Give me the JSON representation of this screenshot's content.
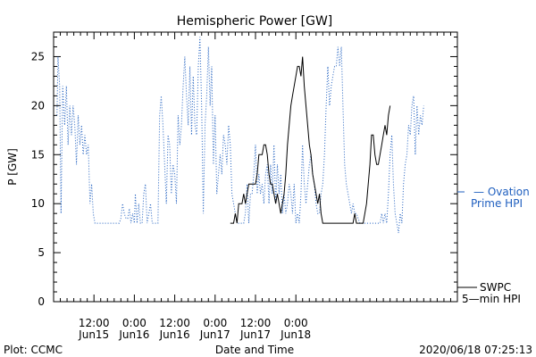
{
  "chart_data": {
    "type": "line",
    "title": "Hemispheric Power [GW]",
    "ylabel": "P [GW]",
    "xlabel": "Date and Time",
    "ylim": [
      0,
      27.5
    ],
    "xlim_hours": [
      0,
      120
    ],
    "x_ticks": [
      {
        "hour": 12,
        "time": "12:00",
        "date": "Jun15"
      },
      {
        "hour": 24,
        "time": "0:00",
        "date": "Jun16"
      },
      {
        "hour": 36,
        "time": "12:00",
        "date": "Jun16"
      },
      {
        "hour": 48,
        "time": "0:00",
        "date": "Jun17"
      },
      {
        "hour": 60,
        "time": "12:00",
        "date": "Jun17"
      },
      {
        "hour": 72,
        "time": "0:00",
        "date": "Jun18"
      }
    ],
    "y_ticks": [
      0,
      5,
      10,
      15,
      20,
      25
    ],
    "grid": false,
    "series": [
      {
        "name": "Ovation Prime HPI",
        "legend_line1": "— Ovation",
        "legend_line2": "Prime HPI",
        "color": "#1f5fbf",
        "style": "dotted",
        "points": [
          [
            1,
            19
          ],
          [
            1.3,
            25
          ],
          [
            1.8,
            22
          ],
          [
            2.2,
            9
          ],
          [
            2.7,
            22
          ],
          [
            3.3,
            18
          ],
          [
            3.8,
            22
          ],
          [
            4.3,
            16
          ],
          [
            4.8,
            20
          ],
          [
            5.3,
            17
          ],
          [
            5.8,
            20
          ],
          [
            6.3,
            18
          ],
          [
            6.8,
            14
          ],
          [
            7.3,
            19
          ],
          [
            7.8,
            16
          ],
          [
            8.3,
            18
          ],
          [
            8.8,
            15
          ],
          [
            9.3,
            17
          ],
          [
            9.8,
            15
          ],
          [
            10.3,
            16
          ],
          [
            10.8,
            10
          ],
          [
            11.3,
            12
          ],
          [
            11.8,
            9
          ],
          [
            12.3,
            8
          ],
          [
            14,
            8
          ],
          [
            16,
            8
          ],
          [
            18,
            8
          ],
          [
            19.5,
            8
          ],
          [
            20,
            8.5
          ],
          [
            20.5,
            10
          ],
          [
            21,
            9
          ],
          [
            21.5,
            8.5
          ],
          [
            22,
            8.5
          ],
          [
            22.5,
            9.5
          ],
          [
            23,
            8
          ],
          [
            23.5,
            9
          ],
          [
            24,
            8
          ],
          [
            24.3,
            11
          ],
          [
            24.8,
            8
          ],
          [
            25.3,
            10
          ],
          [
            25.8,
            8
          ],
          [
            26.3,
            8
          ],
          [
            26.8,
            11
          ],
          [
            27.3,
            12
          ],
          [
            27.8,
            8
          ],
          [
            28.3,
            9
          ],
          [
            28.8,
            10
          ],
          [
            29.3,
            8
          ],
          [
            30.3,
            8
          ],
          [
            31,
            8
          ],
          [
            31.5,
            19
          ],
          [
            32,
            21
          ],
          [
            32.5,
            18
          ],
          [
            33,
            14
          ],
          [
            33.5,
            10
          ],
          [
            34,
            17
          ],
          [
            34.5,
            16
          ],
          [
            35,
            11
          ],
          [
            35.5,
            14
          ],
          [
            36,
            13
          ],
          [
            36.5,
            10
          ],
          [
            37,
            19
          ],
          [
            37.5,
            16
          ],
          [
            38,
            18
          ],
          [
            38.5,
            22
          ],
          [
            39,
            25
          ],
          [
            39.5,
            21
          ],
          [
            40,
            18
          ],
          [
            40.5,
            24
          ],
          [
            41,
            17
          ],
          [
            41.5,
            23
          ],
          [
            42,
            18
          ],
          [
            42.5,
            17
          ],
          [
            43,
            24
          ],
          [
            43.5,
            27
          ],
          [
            44,
            20
          ],
          [
            44.5,
            9
          ],
          [
            45,
            18
          ],
          [
            45.5,
            21
          ],
          [
            46,
            26
          ],
          [
            46.5,
            20
          ],
          [
            47,
            24
          ],
          [
            47.5,
            14
          ],
          [
            48,
            19
          ],
          [
            48.5,
            11
          ],
          [
            49,
            13
          ],
          [
            49.5,
            15
          ],
          [
            50,
            13
          ],
          [
            50.5,
            17
          ],
          [
            51,
            16
          ],
          [
            51.5,
            14
          ],
          [
            52,
            18
          ],
          [
            52.5,
            16
          ],
          [
            53,
            11
          ],
          [
            53.5,
            10
          ],
          [
            54,
            9
          ],
          [
            54.5,
            8
          ],
          [
            55,
            8
          ],
          [
            56,
            8
          ],
          [
            56.5,
            8
          ],
          [
            57,
            9
          ],
          [
            57.5,
            12
          ],
          [
            58,
            8
          ],
          [
            58.5,
            11
          ],
          [
            59,
            11
          ],
          [
            59.5,
            13
          ],
          [
            60,
            16
          ],
          [
            60.5,
            11
          ],
          [
            61,
            13
          ],
          [
            61.5,
            11
          ],
          [
            62,
            12
          ],
          [
            62.5,
            10
          ],
          [
            63,
            13
          ],
          [
            63.5,
            14
          ],
          [
            64,
            10
          ],
          [
            64.5,
            14
          ],
          [
            65,
            11
          ],
          [
            65.5,
            16
          ],
          [
            66,
            10
          ],
          [
            66.5,
            14
          ],
          [
            67,
            11
          ],
          [
            67.5,
            13
          ],
          [
            68,
            9
          ],
          [
            68.5,
            11
          ],
          [
            69,
            9
          ],
          [
            69.5,
            10
          ],
          [
            70,
            12
          ],
          [
            70.5,
            11
          ],
          [
            71,
            9
          ],
          [
            71.5,
            12
          ],
          [
            72,
            8
          ],
          [
            72.5,
            9
          ],
          [
            73,
            8
          ],
          [
            73.5,
            11
          ],
          [
            74,
            16
          ],
          [
            74.5,
            12
          ],
          [
            75,
            10
          ],
          [
            75.5,
            12
          ],
          [
            76,
            14
          ],
          [
            76.5,
            15
          ],
          [
            77,
            13
          ],
          [
            77.5,
            12
          ],
          [
            78,
            10
          ],
          [
            78.5,
            9
          ],
          [
            79,
            9
          ],
          [
            79.5,
            11
          ],
          [
            80,
            12
          ],
          [
            80.5,
            15
          ],
          [
            81,
            20
          ],
          [
            81.5,
            24
          ],
          [
            82,
            20
          ],
          [
            82.5,
            22
          ],
          [
            83,
            23
          ],
          [
            83.5,
            24
          ],
          [
            84,
            24
          ],
          [
            84.5,
            26
          ],
          [
            85,
            24
          ],
          [
            85.5,
            26
          ],
          [
            86,
            20
          ],
          [
            86.5,
            14
          ],
          [
            87,
            12
          ],
          [
            87.5,
            11
          ],
          [
            88,
            10
          ],
          [
            88.5,
            9
          ],
          [
            89,
            10
          ],
          [
            89.5,
            9
          ],
          [
            90,
            9
          ],
          [
            91,
            8
          ],
          [
            93,
            8
          ],
          [
            95,
            8
          ],
          [
            97,
            8
          ],
          [
            97.5,
            9
          ],
          [
            98,
            8
          ],
          [
            98.5,
            9
          ],
          [
            99,
            8
          ],
          [
            99.5,
            11
          ],
          [
            100,
            15
          ],
          [
            100.5,
            17
          ],
          [
            101,
            12
          ],
          [
            101.5,
            9
          ],
          [
            102,
            8
          ],
          [
            102.5,
            7
          ],
          [
            103,
            9
          ],
          [
            103.5,
            8
          ],
          [
            104,
            12
          ],
          [
            104.5,
            14
          ],
          [
            105,
            15
          ],
          [
            105.5,
            18
          ],
          [
            106,
            17
          ],
          [
            106.5,
            20
          ],
          [
            107,
            21
          ],
          [
            107.5,
            15
          ],
          [
            108,
            20
          ],
          [
            108.5,
            17
          ],
          [
            109,
            19
          ],
          [
            109.5,
            18
          ],
          [
            110,
            20
          ]
        ]
      },
      {
        "name": "SWPC 5-min HPI",
        "legend_line1": "SWPC",
        "legend_line2": "5—min HPI",
        "color": "#000000",
        "style": "solid",
        "points": [
          [
            52.5,
            8
          ],
          [
            53.5,
            8
          ],
          [
            54,
            9
          ],
          [
            54.5,
            8
          ],
          [
            55,
            10
          ],
          [
            56,
            10
          ],
          [
            56.5,
            11
          ],
          [
            57,
            10
          ],
          [
            57.5,
            11
          ],
          [
            58,
            12
          ],
          [
            60,
            12
          ],
          [
            60.5,
            13
          ],
          [
            61,
            15
          ],
          [
            62,
            15
          ],
          [
            62.5,
            16
          ],
          [
            63,
            16
          ],
          [
            63.5,
            15
          ],
          [
            64,
            13
          ],
          [
            64.5,
            12
          ],
          [
            65,
            12
          ],
          [
            65.5,
            11
          ],
          [
            66,
            10
          ],
          [
            66.5,
            11
          ],
          [
            67,
            10
          ],
          [
            67.5,
            9
          ],
          [
            68,
            10
          ],
          [
            68.5,
            11
          ],
          [
            69,
            13
          ],
          [
            69.5,
            16
          ],
          [
            70,
            18
          ],
          [
            70.5,
            20
          ],
          [
            71,
            21
          ],
          [
            71.5,
            22
          ],
          [
            72,
            23
          ],
          [
            72.5,
            24
          ],
          [
            73,
            24
          ],
          [
            73.5,
            23
          ],
          [
            74,
            25
          ],
          [
            74.5,
            22
          ],
          [
            75,
            20
          ],
          [
            75.5,
            18
          ],
          [
            76,
            16
          ],
          [
            76.5,
            15
          ],
          [
            77,
            13
          ],
          [
            77.5,
            12
          ],
          [
            78,
            11
          ],
          [
            78.5,
            10
          ],
          [
            79,
            11
          ],
          [
            79.5,
            9
          ],
          [
            80,
            8
          ],
          [
            82,
            8
          ],
          [
            85,
            8
          ],
          [
            88,
            8
          ],
          [
            89,
            8
          ],
          [
            89.5,
            9
          ],
          [
            90,
            8
          ],
          [
            91,
            8
          ],
          [
            92,
            8
          ],
          [
            92.5,
            9
          ],
          [
            93,
            10
          ],
          [
            93.5,
            12
          ],
          [
            94,
            14
          ],
          [
            94.5,
            17
          ],
          [
            95,
            17
          ],
          [
            95.5,
            15
          ],
          [
            96,
            14
          ],
          [
            96.5,
            14
          ],
          [
            97,
            15
          ],
          [
            97.5,
            16
          ],
          [
            98,
            17
          ],
          [
            98.5,
            18
          ],
          [
            99,
            17
          ],
          [
            99.5,
            19
          ],
          [
            100,
            20
          ]
        ]
      }
    ]
  },
  "footer": {
    "left": "Plot: CCMC",
    "center": "Date and Time",
    "right": "2020/06/18 07:25:13"
  }
}
